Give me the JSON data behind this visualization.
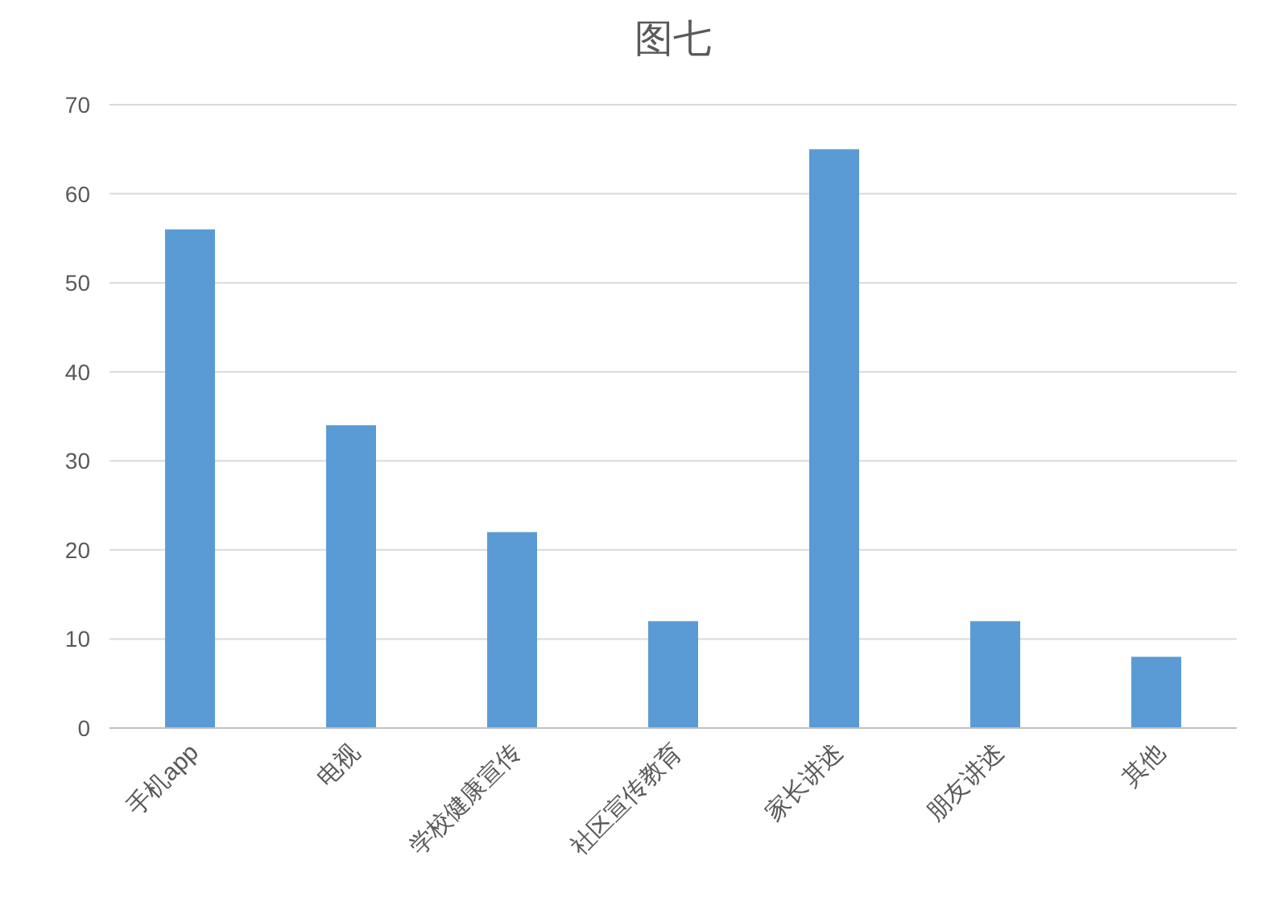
{
  "chart_data": {
    "type": "bar",
    "title": "图七",
    "categories": [
      "手机app",
      "电视",
      "学校健康宣传",
      "社区宣传教育",
      "家长讲述",
      "朋友讲述",
      "其他"
    ],
    "values": [
      56,
      34,
      22,
      12,
      65,
      12,
      8
    ],
    "color": "#5b9bd5",
    "ylim": [
      0,
      70
    ],
    "yticks": [
      0,
      10,
      20,
      30,
      40,
      50,
      60,
      70
    ],
    "grid": "y"
  }
}
